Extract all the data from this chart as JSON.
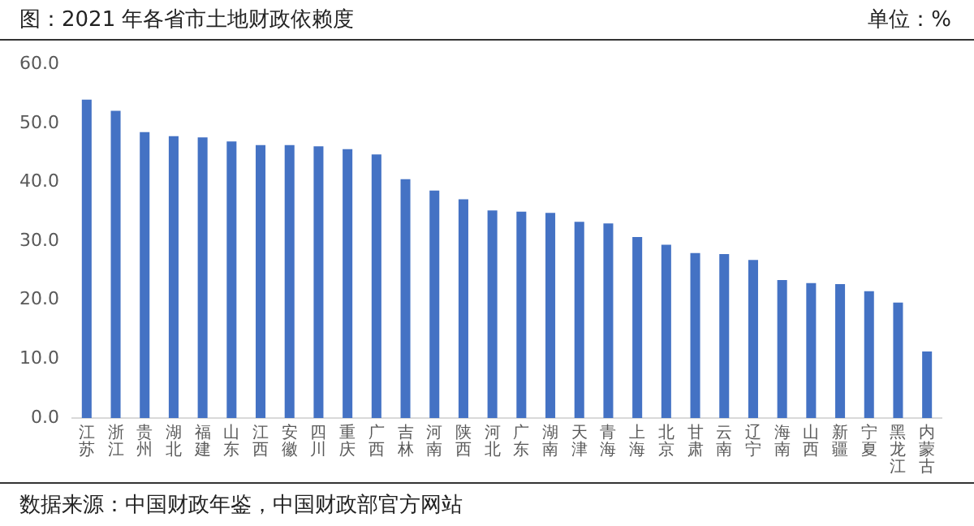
{
  "chart_data": {
    "type": "bar",
    "title": "图：2021 年各省市土地财政依赖度",
    "ylabel": "单位：%",
    "annotations": [
      "数据来源：中国财政年鉴，中国财政部官方网站"
    ],
    "categories": [
      "江苏",
      "浙江",
      "贵州",
      "湖北",
      "福建",
      "山东",
      "江西",
      "安徽",
      "四川",
      "重庆",
      "广西",
      "吉林",
      "河南",
      "陕西",
      "河北",
      "广东",
      "湖南",
      "天津",
      "青海",
      "上海",
      "北京",
      "甘肃",
      "云南",
      "辽宁",
      "海南",
      "山西",
      "新疆",
      "宁夏",
      "黑龙江",
      "内蒙古"
    ],
    "values": [
      54.0,
      52.1,
      48.5,
      47.8,
      47.6,
      46.9,
      46.3,
      46.3,
      46.1,
      45.6,
      44.7,
      40.5,
      38.6,
      37.1,
      35.2,
      35.0,
      34.8,
      33.3,
      33.0,
      30.7,
      29.4,
      28.0,
      27.8,
      26.8,
      23.4,
      22.9,
      22.7,
      21.5,
      19.6,
      11.3
    ],
    "color": "#4472c4",
    "ylim": [
      0,
      60
    ],
    "yticks": [
      {
        "value": 0,
        "label": "0.0"
      },
      {
        "value": 10,
        "label": "10.0"
      },
      {
        "value": 20,
        "label": "20.0"
      },
      {
        "value": 30,
        "label": "30.0"
      },
      {
        "value": 40,
        "label": "40.0"
      },
      {
        "value": 50,
        "label": "50.0"
      },
      {
        "value": 60,
        "label": "60.0"
      }
    ],
    "grid": false,
    "legend": false
  }
}
